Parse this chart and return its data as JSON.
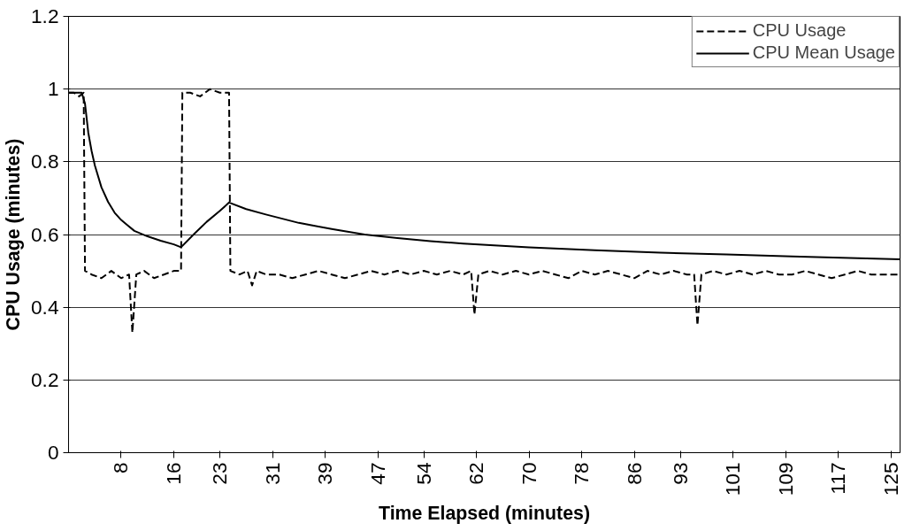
{
  "chart_data": {
    "type": "line",
    "xlabel": "Time Elapsed (minutes)",
    "ylabel": "CPU Usage (minutes)",
    "xlim": [
      0,
      126.4
    ],
    "ylim": [
      0,
      1.2
    ],
    "xticks": [
      8,
      16,
      23,
      31,
      39,
      47,
      54,
      62,
      70,
      78,
      86,
      93,
      101,
      109,
      117,
      125
    ],
    "yticks": [
      0,
      0.2,
      0.4,
      0.6,
      0.8,
      1,
      1.2
    ],
    "grid": "y",
    "legend": "top right",
    "series": [
      {
        "name": "CPU Usage",
        "color": "#000000",
        "line_style": "dashed",
        "x": [
          0,
          0.8,
          1.6,
          2.3,
          2.5,
          3.5,
          5,
          6.5,
          8,
          9.2,
          9.7,
          10.3,
          11.5,
          13,
          14.5,
          16,
          17.1,
          17.3,
          18.5,
          20,
          21.5,
          23,
          24.4,
          24.6,
          26,
          27.2,
          27.9,
          28.6,
          30,
          32,
          34,
          36,
          38,
          40,
          42,
          44,
          46,
          48,
          50,
          52,
          54,
          56,
          58,
          60,
          61.2,
          61.7,
          62.3,
          64,
          66,
          68,
          70,
          72,
          74,
          76,
          78,
          80,
          82,
          84,
          86,
          88,
          90,
          92,
          94,
          95.1,
          95.6,
          96.2,
          98,
          100,
          102,
          104,
          106,
          108,
          110,
          112,
          114,
          116,
          118,
          120,
          122,
          124,
          126.4
        ],
        "values": [
          0.99,
          0.99,
          0.98,
          0.99,
          0.5,
          0.49,
          0.48,
          0.5,
          0.48,
          0.49,
          0.33,
          0.49,
          0.5,
          0.48,
          0.49,
          0.5,
          0.5,
          0.99,
          0.99,
          0.98,
          1.0,
          0.99,
          0.99,
          0.5,
          0.49,
          0.5,
          0.46,
          0.5,
          0.49,
          0.49,
          0.48,
          0.49,
          0.5,
          0.49,
          0.48,
          0.49,
          0.5,
          0.49,
          0.5,
          0.49,
          0.5,
          0.49,
          0.5,
          0.49,
          0.5,
          0.38,
          0.49,
          0.5,
          0.49,
          0.5,
          0.49,
          0.5,
          0.49,
          0.48,
          0.5,
          0.49,
          0.5,
          0.49,
          0.48,
          0.5,
          0.49,
          0.5,
          0.49,
          0.49,
          0.35,
          0.49,
          0.5,
          0.49,
          0.5,
          0.49,
          0.5,
          0.49,
          0.49,
          0.5,
          0.49,
          0.48,
          0.49,
          0.5,
          0.49,
          0.49,
          0.49
        ]
      },
      {
        "name": "CPU Mean Usage",
        "color": "#000000",
        "line_style": "solid",
        "x": [
          0,
          1,
          2,
          2.5,
          3,
          3.5,
          4,
          5,
          6,
          7,
          8,
          9,
          10,
          12,
          14,
          16,
          17.1,
          19,
          21,
          23,
          24.4,
          27,
          30,
          35,
          40,
          45,
          50,
          55,
          60,
          70,
          80,
          90,
          100,
          110,
          120,
          126.4
        ],
        "values": [
          0.99,
          0.99,
          0.99,
          0.96,
          0.88,
          0.83,
          0.79,
          0.73,
          0.69,
          0.66,
          0.64,
          0.625,
          0.61,
          0.595,
          0.583,
          0.573,
          0.565,
          0.6,
          0.635,
          0.665,
          0.688,
          0.67,
          0.655,
          0.632,
          0.615,
          0.6,
          0.59,
          0.582,
          0.575,
          0.565,
          0.557,
          0.55,
          0.545,
          0.54,
          0.535,
          0.532
        ]
      }
    ]
  }
}
